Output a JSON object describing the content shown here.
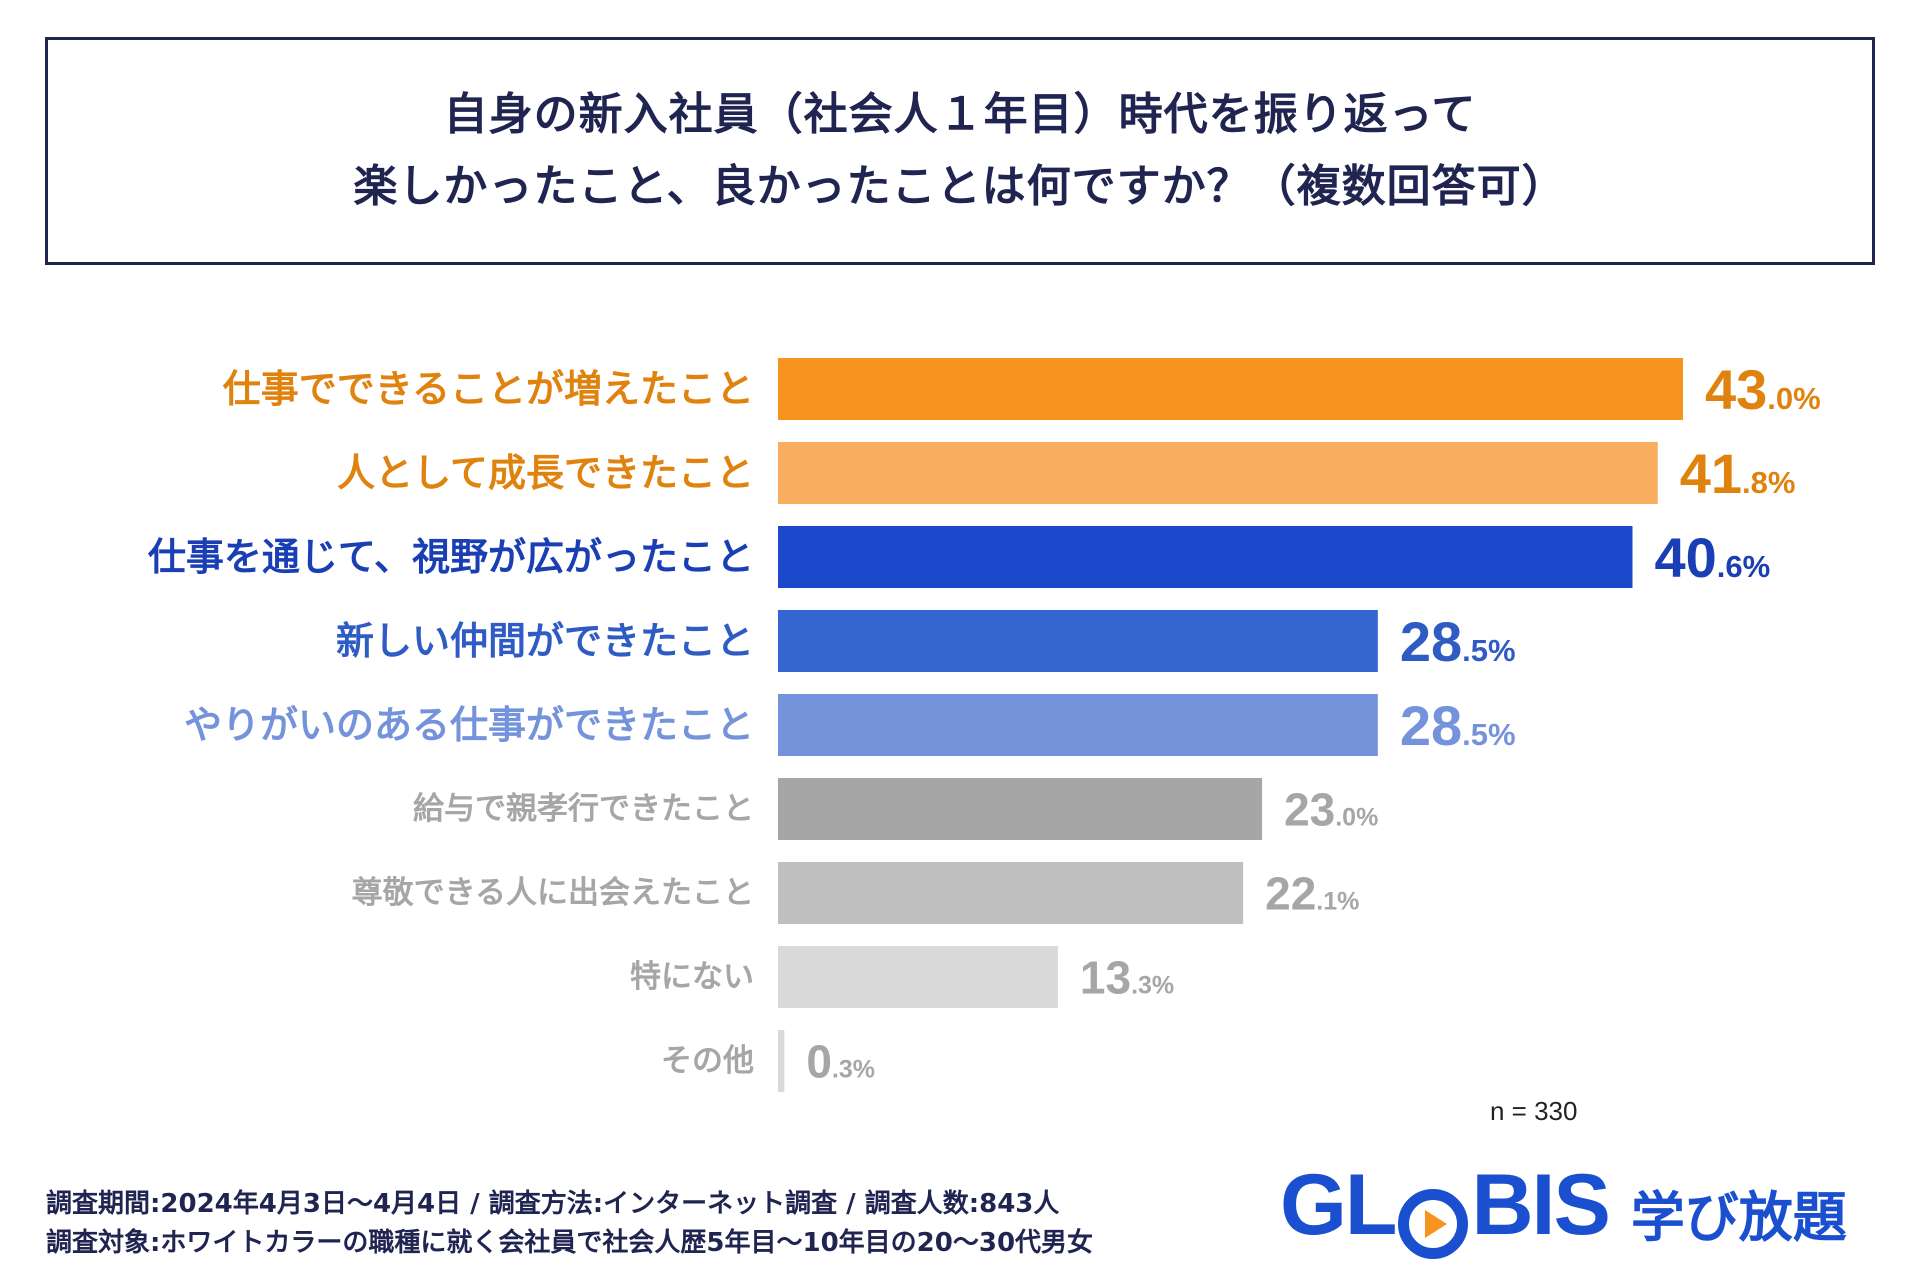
{
  "title": {
    "line1": "自身の新入社員（社会人１年目）時代を振り返って",
    "line2": "楽しかったこと、良かったことは何ですか？（複数回答可）"
  },
  "chart_data": {
    "type": "bar",
    "orientation": "horizontal",
    "categories": [
      "仕事でできることが増えたこと",
      "人として成長できたこと",
      "仕事を通じて、視野が広がったこと",
      "新しい仲間ができたこと",
      "やりがいのある仕事ができたこと",
      "給与で親孝行できたこと",
      "尊敬できる人に出会えたこと",
      "特にない",
      "その他"
    ],
    "values": [
      43.0,
      41.8,
      40.6,
      28.5,
      28.5,
      23.0,
      22.1,
      13.3,
      0.3
    ],
    "value_labels": [
      {
        "int": "43",
        "dec": ".0%"
      },
      {
        "int": "41",
        "dec": ".8%"
      },
      {
        "int": "40",
        "dec": ".6%"
      },
      {
        "int": "28",
        "dec": ".5%"
      },
      {
        "int": "28",
        "dec": ".5%"
      },
      {
        "int": "23",
        "dec": ".0%"
      },
      {
        "int": "22",
        "dec": ".1%"
      },
      {
        "int": "13",
        "dec": ".3%"
      },
      {
        "int": "0",
        "dec": ".3%"
      }
    ],
    "bar_colors": [
      "#f7941d",
      "#f8ae5e",
      "#1a4acb",
      "#3366d1",
      "#7593db",
      "#a6a6a6",
      "#bfbfbf",
      "#d9d9d9",
      "#d9d9d9"
    ],
    "label_colors": [
      "#e0820e",
      "#e0820e",
      "#1a3fb5",
      "#2f5cc4",
      "#7593db",
      "#a6a6a6",
      "#a6a6a6",
      "#a6a6a6",
      "#a6a6a6"
    ],
    "xlim": [
      0,
      43.0
    ],
    "title": "自身の新入社員（社会人１年目）時代を振り返って 楽しかったこと、良かったことは何ですか？（複数回答可）",
    "xlabel": "",
    "ylabel": ""
  },
  "sample": "n = 330",
  "footer": {
    "line1": "調査期間:2024年4月3日～4月4日 / 調査方法:インターネット調査 / 調査人数:843人",
    "line2": "調査対象:ホワイトカラーの職種に就く会社員で社会人歴5年目～10年目の20～30代男女"
  },
  "logo": {
    "word_pre": "GL",
    "word_post": "BIS",
    "sub": "学び放題",
    "accent": "#f7941d",
    "brand": "#1a4fcf"
  }
}
